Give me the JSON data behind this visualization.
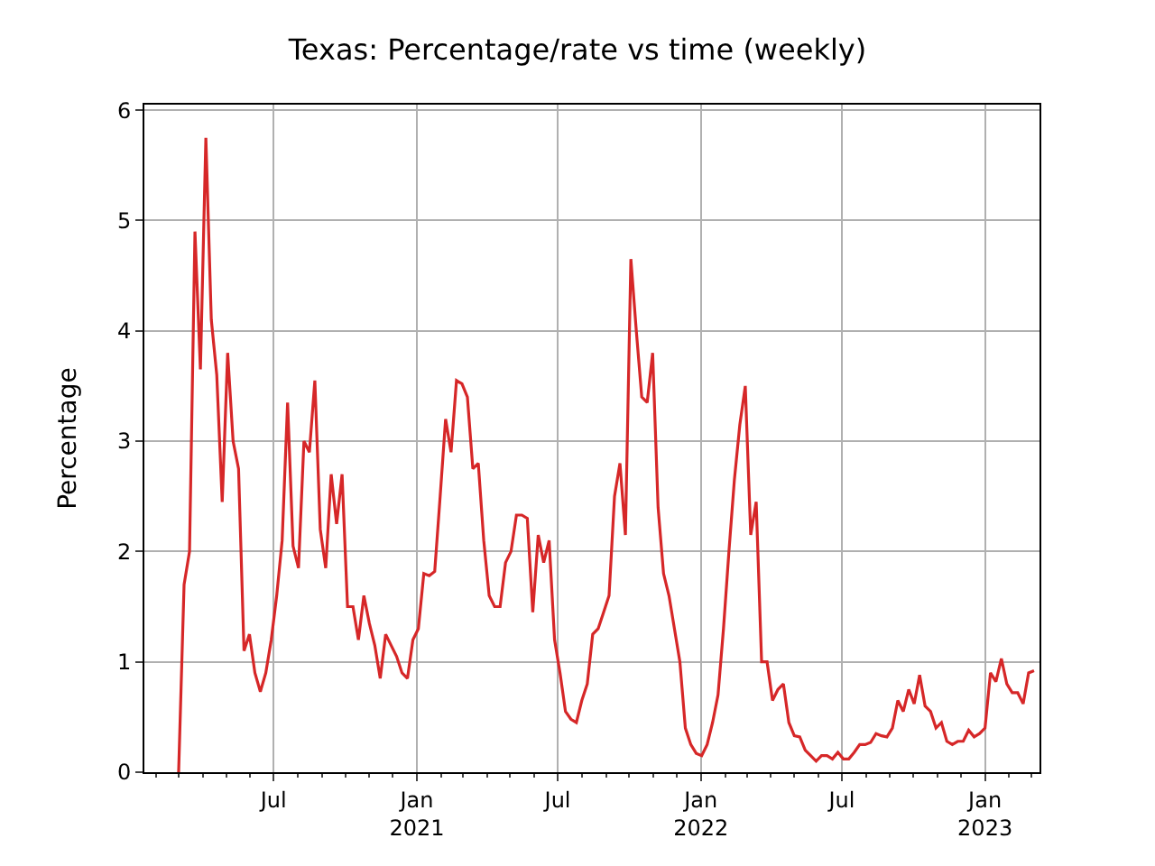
{
  "chart_data": {
    "type": "line",
    "title": "Texas: Percentage/rate vs time (weekly)",
    "ylabel": "Percentage",
    "x": [
      "2020-03-01",
      "2020-03-08",
      "2020-03-15",
      "2020-03-22",
      "2020-03-29",
      "2020-04-05",
      "2020-04-12",
      "2020-04-19",
      "2020-04-26",
      "2020-05-03",
      "2020-05-10",
      "2020-05-17",
      "2020-05-24",
      "2020-05-31",
      "2020-06-07",
      "2020-06-14",
      "2020-06-21",
      "2020-06-28",
      "2020-07-05",
      "2020-07-12",
      "2020-07-19",
      "2020-07-26",
      "2020-08-02",
      "2020-08-09",
      "2020-08-16",
      "2020-08-23",
      "2020-08-30",
      "2020-09-06",
      "2020-09-13",
      "2020-09-20",
      "2020-09-27",
      "2020-10-04",
      "2020-10-11",
      "2020-10-18",
      "2020-10-25",
      "2020-11-01",
      "2020-11-08",
      "2020-11-15",
      "2020-11-22",
      "2020-11-29",
      "2020-12-06",
      "2020-12-13",
      "2020-12-20",
      "2020-12-27",
      "2021-01-03",
      "2021-01-10",
      "2021-01-17",
      "2021-01-24",
      "2021-01-31",
      "2021-02-07",
      "2021-02-14",
      "2021-02-21",
      "2021-02-28",
      "2021-03-07",
      "2021-03-14",
      "2021-03-21",
      "2021-03-28",
      "2021-04-04",
      "2021-04-11",
      "2021-04-18",
      "2021-04-25",
      "2021-05-02",
      "2021-05-09",
      "2021-05-16",
      "2021-05-23",
      "2021-05-30",
      "2021-06-06",
      "2021-06-13",
      "2021-06-20",
      "2021-06-27",
      "2021-07-04",
      "2021-07-11",
      "2021-07-18",
      "2021-07-25",
      "2021-08-01",
      "2021-08-08",
      "2021-08-15",
      "2021-08-22",
      "2021-08-29",
      "2021-09-05",
      "2021-09-12",
      "2021-09-19",
      "2021-09-26",
      "2021-10-03",
      "2021-10-10",
      "2021-10-17",
      "2021-10-24",
      "2021-10-31",
      "2021-11-07",
      "2021-11-14",
      "2021-11-21",
      "2021-11-28",
      "2021-12-05",
      "2021-12-12",
      "2021-12-19",
      "2021-12-26",
      "2022-01-02",
      "2022-01-09",
      "2022-01-16",
      "2022-01-23",
      "2022-01-30",
      "2022-02-06",
      "2022-02-13",
      "2022-02-20",
      "2022-02-27",
      "2022-03-06",
      "2022-03-13",
      "2022-03-20",
      "2022-03-27",
      "2022-04-03",
      "2022-04-10",
      "2022-04-17",
      "2022-04-24",
      "2022-05-01",
      "2022-05-08",
      "2022-05-15",
      "2022-05-22",
      "2022-05-29",
      "2022-06-05",
      "2022-06-12",
      "2022-06-19",
      "2022-06-26",
      "2022-07-03",
      "2022-07-10",
      "2022-07-17",
      "2022-07-24",
      "2022-07-31",
      "2022-08-07",
      "2022-08-14",
      "2022-08-21",
      "2022-08-28",
      "2022-09-04",
      "2022-09-11",
      "2022-09-18",
      "2022-09-25",
      "2022-10-02",
      "2022-10-09",
      "2022-10-16",
      "2022-10-23",
      "2022-10-30",
      "2022-11-06",
      "2022-11-13",
      "2022-11-20",
      "2022-11-27",
      "2022-12-04",
      "2022-12-11",
      "2022-12-18",
      "2022-12-25",
      "2023-01-01",
      "2023-01-08",
      "2023-01-15",
      "2023-01-22",
      "2023-01-29",
      "2023-02-05",
      "2023-02-12",
      "2023-02-19",
      "2023-02-26",
      "2023-03-05"
    ],
    "series": [
      {
        "color": "#d62728",
        "values": [
          0,
          1.7,
          2.0,
          4.9,
          3.65,
          5.75,
          4.1,
          3.6,
          2.45,
          3.8,
          3.0,
          2.75,
          1.1,
          1.25,
          0.9,
          0.73,
          0.9,
          1.2,
          1.6,
          2.1,
          3.35,
          2.05,
          1.85,
          3.0,
          2.9,
          3.55,
          2.2,
          1.85,
          2.7,
          2.25,
          2.7,
          1.5,
          1.5,
          1.2,
          1.6,
          1.35,
          1.15,
          0.85,
          1.25,
          1.15,
          1.05,
          0.9,
          0.85,
          1.2,
          1.3,
          1.8,
          1.78,
          1.82,
          2.5,
          3.2,
          2.9,
          3.55,
          3.52,
          3.4,
          2.75,
          2.8,
          2.1,
          1.6,
          1.5,
          1.5,
          1.9,
          2.0,
          2.33,
          2.33,
          2.3,
          1.45,
          2.15,
          1.9,
          2.1,
          1.2,
          0.9,
          0.55,
          0.48,
          0.45,
          0.65,
          0.8,
          1.25,
          1.3,
          1.45,
          1.6,
          2.5,
          2.8,
          2.15,
          4.65,
          4.0,
          3.4,
          3.35,
          3.8,
          2.4,
          1.8,
          1.6,
          1.3,
          1.0,
          0.4,
          0.25,
          0.17,
          0.15,
          0.25,
          0.45,
          0.7,
          1.3,
          2.0,
          2.65,
          3.15,
          3.5,
          2.15,
          2.45,
          1.0,
          1.0,
          0.65,
          0.75,
          0.8,
          0.45,
          0.33,
          0.32,
          0.2,
          0.15,
          0.1,
          0.15,
          0.15,
          0.12,
          0.18,
          0.12,
          0.12,
          0.18,
          0.25,
          0.25,
          0.27,
          0.35,
          0.33,
          0.32,
          0.4,
          0.65,
          0.55,
          0.75,
          0.62,
          0.88,
          0.6,
          0.55,
          0.4,
          0.45,
          0.28,
          0.25,
          0.28,
          0.28,
          0.38,
          0.32,
          0.35,
          0.4,
          0.9,
          0.82,
          1.03,
          0.8,
          0.72,
          0.72,
          0.62,
          0.9,
          0.92
        ]
      }
    ],
    "xlim": [
      "2020-01-17",
      "2023-03-12"
    ],
    "xticks": [
      {
        "value": "2020-02-01",
        "label": null
      },
      {
        "value": "2020-03-01",
        "label": null
      },
      {
        "value": "2020-04-01",
        "label": null
      },
      {
        "value": "2020-05-01",
        "label": null
      },
      {
        "value": "2020-06-01",
        "label": null
      },
      {
        "value": "2020-07-01",
        "label": "Jul"
      },
      {
        "value": "2020-08-01",
        "label": null
      },
      {
        "value": "2020-09-01",
        "label": null
      },
      {
        "value": "2020-10-01",
        "label": null
      },
      {
        "value": "2020-11-01",
        "label": null
      },
      {
        "value": "2020-12-01",
        "label": null
      },
      {
        "value": "2021-01-01",
        "label": "Jan\n2021"
      },
      {
        "value": "2021-02-01",
        "label": null
      },
      {
        "value": "2021-03-01",
        "label": null
      },
      {
        "value": "2021-04-01",
        "label": null
      },
      {
        "value": "2021-05-01",
        "label": null
      },
      {
        "value": "2021-06-01",
        "label": null
      },
      {
        "value": "2021-07-01",
        "label": "Jul"
      },
      {
        "value": "2021-08-01",
        "label": null
      },
      {
        "value": "2021-09-01",
        "label": null
      },
      {
        "value": "2021-10-01",
        "label": null
      },
      {
        "value": "2021-11-01",
        "label": null
      },
      {
        "value": "2021-12-01",
        "label": null
      },
      {
        "value": "2022-01-01",
        "label": "Jan\n2022"
      },
      {
        "value": "2022-02-01",
        "label": null
      },
      {
        "value": "2022-03-01",
        "label": null
      },
      {
        "value": "2022-04-01",
        "label": null
      },
      {
        "value": "2022-05-01",
        "label": null
      },
      {
        "value": "2022-06-01",
        "label": null
      },
      {
        "value": "2022-07-01",
        "label": "Jul"
      },
      {
        "value": "2022-08-01",
        "label": null
      },
      {
        "value": "2022-09-01",
        "label": null
      },
      {
        "value": "2022-10-01",
        "label": null
      },
      {
        "value": "2022-11-01",
        "label": null
      },
      {
        "value": "2022-12-01",
        "label": null
      },
      {
        "value": "2023-01-01",
        "label": "Jan\n2023"
      },
      {
        "value": "2023-02-01",
        "label": null
      },
      {
        "value": "2023-03-01",
        "label": null
      }
    ],
    "ylim": [
      0,
      6.05
    ],
    "yticks": [
      0,
      1,
      2,
      3,
      4,
      5,
      6
    ],
    "grid": true,
    "marker": "none",
    "line_style": "solid"
  }
}
